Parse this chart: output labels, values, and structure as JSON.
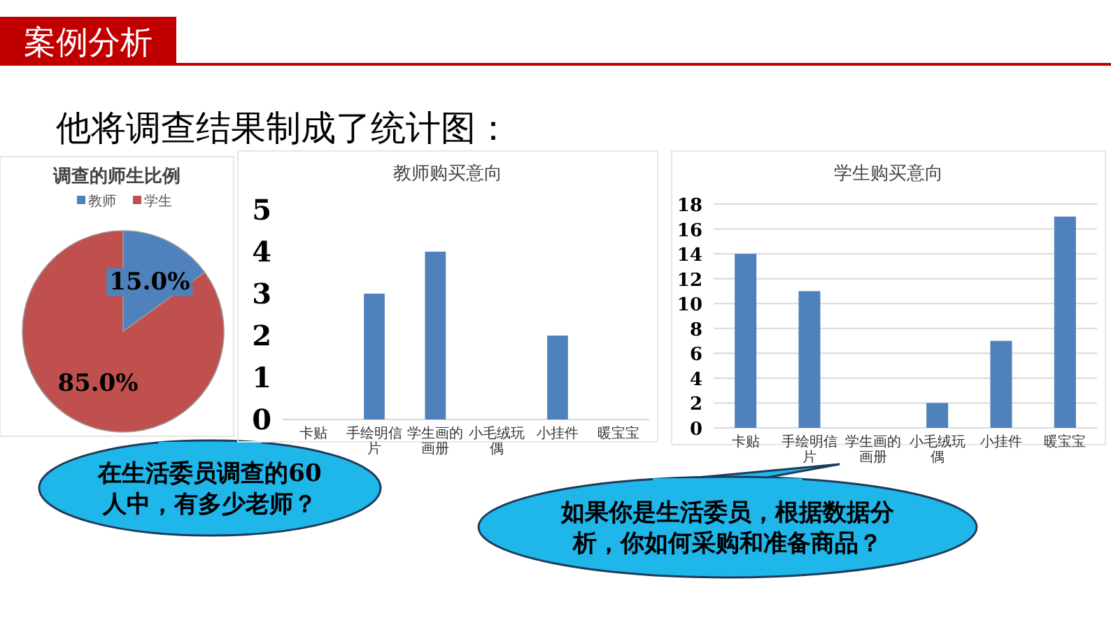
{
  "chart_data": [
    {
      "type": "pie",
      "title": "调查的师生比例",
      "categories": [
        "教师",
        "学生"
      ],
      "values": [
        15,
        85
      ],
      "colors": [
        "#4f81bd",
        "#c0504d"
      ],
      "value_labels": [
        "15.0%",
        "85.0%"
      ],
      "legend": "top",
      "annotations": [
        "案例分析",
        "他将调查结果制成了统计图：",
        "在生活委员调查的60人中，有多少老师？"
      ]
    },
    {
      "type": "bar",
      "title": "教师购买意向",
      "categories": [
        "卡贴",
        "手绘明信片",
        "学生画的画册",
        "小毛绒玩偶",
        "小挂件",
        "暖宝宝"
      ],
      "values": [
        0,
        3,
        4,
        0,
        2,
        0
      ],
      "color": "#4f81bd",
      "ylim": [
        0,
        5
      ],
      "yticks": [
        0,
        1,
        2,
        3,
        4,
        5
      ]
    },
    {
      "type": "bar",
      "title": "学生购买意向",
      "categories": [
        "卡贴",
        "手绘明信片",
        "学生画的画册",
        "小毛绒玩偶",
        "小挂件",
        "暖宝宝"
      ],
      "values": [
        14,
        11,
        0,
        2,
        7,
        17
      ],
      "color": "#4f81bd",
      "ylim": [
        0,
        18
      ],
      "yticks": [
        0,
        2,
        4,
        6,
        8,
        10,
        12,
        14,
        16,
        18
      ],
      "grid": "y",
      "annotations": [
        "如果你是生活委员，根据数据分析，你如何采购和准备商品？"
      ]
    }
  ]
}
